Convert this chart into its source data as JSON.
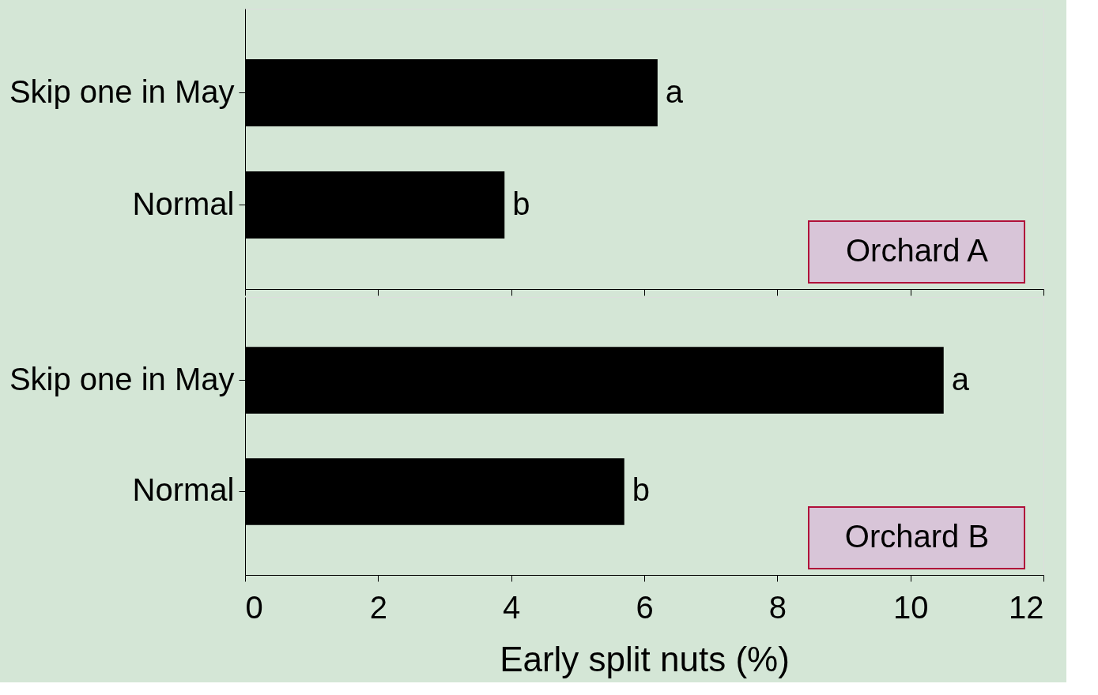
{
  "chart_data": [
    {
      "type": "bar",
      "orientation": "horizontal",
      "categories": [
        "Skip one in May",
        "Normal"
      ],
      "values": [
        6.2,
        3.9
      ],
      "color": "#000000",
      "value_labels": [
        "a",
        "b"
      ],
      "xlim": [
        0,
        12
      ],
      "xticks": [
        0,
        2,
        4,
        6,
        8,
        10,
        12
      ],
      "tick_labels": "y",
      "annotations": [
        "Orchard A"
      ]
    },
    {
      "type": "bar",
      "orientation": "horizontal",
      "categories": [
        "Skip one in May",
        "Normal"
      ],
      "values": [
        10.5,
        5.7
      ],
      "color": "#000000",
      "value_labels": [
        "a",
        "b"
      ],
      "xlim": [
        0,
        12
      ],
      "xticks": [
        0,
        2,
        4,
        6,
        8,
        10,
        12
      ],
      "xlabel": "Early split nuts (%)",
      "annotations": [
        "Orchard B"
      ]
    }
  ]
}
